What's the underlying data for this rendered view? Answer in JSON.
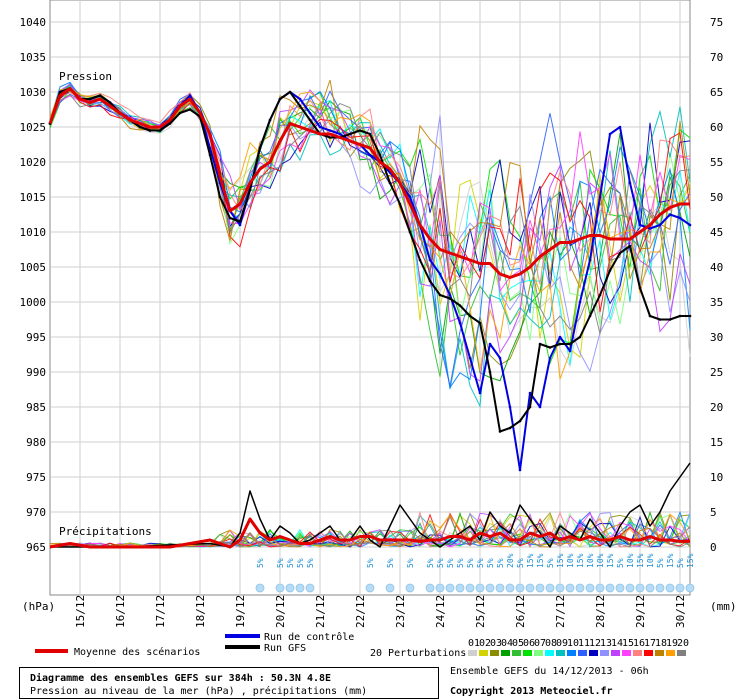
{
  "chart_data": {
    "type": "line",
    "title": "Diagramme des ensembles GEFS sur 384h : 50.3N 4.8E",
    "subtitle": "Pression au niveau de la mer (hPa) , précipitations (mm)",
    "run_info": "Ensemble GEFS du 14/12/2013 - 06h",
    "copyright": "Copyright 2013 Meteociel.fr",
    "left_axis_unit": "(hPa)",
    "right_axis_unit": "(mm)",
    "pressure_label": "Pression",
    "precip_label": "Précipitations",
    "left_ylim": [
      962,
      1040
    ],
    "left_ticks": [
      965,
      970,
      975,
      980,
      985,
      990,
      995,
      1000,
      1005,
      1010,
      1015,
      1020,
      1025,
      1030,
      1035,
      1040
    ],
    "right_ylim": [
      0,
      75
    ],
    "right_ticks": [
      0,
      5,
      10,
      15,
      20,
      25,
      30,
      35,
      40,
      45,
      50,
      55,
      60,
      65,
      70,
      75
    ],
    "x_ticks": [
      "15/12",
      "16/12",
      "17/12",
      "18/12",
      "19/12",
      "20/12",
      "21/12",
      "22/12",
      "23/12",
      "24/12",
      "25/12",
      "26/12",
      "27/12",
      "28/12",
      "29/12",
      "30/12"
    ],
    "x_tick_hours": [
      18,
      42,
      66,
      90,
      114,
      138,
      162,
      186,
      210,
      234,
      258,
      282,
      306,
      330,
      354,
      378
    ],
    "x_range_hours": [
      0,
      384
    ],
    "grid": true,
    "legend": {
      "mean": "Moyenne des scénarios",
      "control": "Run de contrôle",
      "gfs": "Run GFS",
      "perturbations": "20 Perturbations",
      "perturbation_ids": [
        "01",
        "02",
        "03",
        "04",
        "05",
        "06",
        "07",
        "08",
        "09",
        "10",
        "11",
        "12",
        "13",
        "14",
        "15",
        "16",
        "17",
        "18",
        "19",
        "20"
      ]
    },
    "perturbation_colors": [
      "#cfcfcf",
      "#d3d300",
      "#8c8c00",
      "#00a000",
      "#30c030",
      "#00e000",
      "#80ff80",
      "#00ffff",
      "#00c0c0",
      "#0080ff",
      "#3060ff",
      "#0000c0",
      "#9090ff",
      "#c040ff",
      "#ff40ff",
      "#ff8080",
      "#ff0000",
      "#c08000",
      "#ffa000",
      "#808080"
    ],
    "series_colors": {
      "mean": "#e00000",
      "control": "#0000e0",
      "gfs": "#000000"
    },
    "snow_probabilities": [
      {
        "hour": 126,
        "label": "5%"
      },
      {
        "hour": 138,
        "label": "5%"
      },
      {
        "hour": 144,
        "label": "5%"
      },
      {
        "hour": 150,
        "label": "5%"
      },
      {
        "hour": 156,
        "label": "5%"
      },
      {
        "hour": 192,
        "label": "5%"
      },
      {
        "hour": 204,
        "label": "5%"
      },
      {
        "hour": 216,
        "label": "5%"
      },
      {
        "hour": 228,
        "label": "5%"
      },
      {
        "hour": 234,
        "label": "5%"
      },
      {
        "hour": 240,
        "label": "5%"
      },
      {
        "hour": 246,
        "label": "5%"
      },
      {
        "hour": 252,
        "label": "5%"
      },
      {
        "hour": 258,
        "label": "5%"
      },
      {
        "hour": 264,
        "label": "5%"
      },
      {
        "hour": 270,
        "label": "5%"
      },
      {
        "hour": 276,
        "label": "20%"
      },
      {
        "hour": 282,
        "label": "5%"
      },
      {
        "hour": 288,
        "label": "15%"
      },
      {
        "hour": 294,
        "label": "15%"
      },
      {
        "hour": 300,
        "label": "5%"
      },
      {
        "hour": 306,
        "label": "15%"
      },
      {
        "hour": 312,
        "label": "10%"
      },
      {
        "hour": 318,
        "label": "15%"
      },
      {
        "hour": 324,
        "label": "10%"
      },
      {
        "hour": 330,
        "label": "10%"
      },
      {
        "hour": 336,
        "label": "15%"
      },
      {
        "hour": 342,
        "label": "5%"
      },
      {
        "hour": 348,
        "label": "10%"
      },
      {
        "hour": 354,
        "label": "15%"
      },
      {
        "hour": 360,
        "label": "10%"
      },
      {
        "hour": 366,
        "label": "5%"
      },
      {
        "hour": 372,
        "label": "15%"
      },
      {
        "hour": 378,
        "label": "5%"
      },
      {
        "hour": 384,
        "label": "15%"
      }
    ],
    "series": [
      {
        "name": "Moyenne des scénarios",
        "role": "mean",
        "x": [
          0,
          6,
          12,
          18,
          24,
          30,
          36,
          42,
          48,
          54,
          60,
          66,
          72,
          78,
          84,
          90,
          96,
          102,
          108,
          114,
          120,
          126,
          132,
          138,
          144,
          150,
          156,
          162,
          168,
          174,
          180,
          186,
          192,
          198,
          204,
          210,
          216,
          222,
          228,
          234,
          240,
          246,
          252,
          258,
          264,
          270,
          276,
          282,
          288,
          294,
          300,
          306,
          312,
          318,
          324,
          330,
          336,
          342,
          348,
          354,
          360,
          366,
          372,
          378,
          384
        ],
        "y": [
          1025.5,
          1029.5,
          1030.5,
          1029,
          1028.5,
          1029,
          1028,
          1027,
          1026,
          1025.5,
          1025,
          1025,
          1026,
          1028,
          1029,
          1027,
          1024,
          1018,
          1013,
          1014,
          1017,
          1019,
          1020,
          1023,
          1025.5,
          1025,
          1024.5,
          1024,
          1024,
          1023.5,
          1023,
          1022.5,
          1022,
          1020,
          1019,
          1017,
          1014,
          1011,
          1009,
          1007.5,
          1007,
          1006.5,
          1006,
          1005.5,
          1005.5,
          1004,
          1003.5,
          1004,
          1005,
          1006.5,
          1007.5,
          1008.5,
          1008.5,
          1009,
          1009.5,
          1009.5,
          1009,
          1009,
          1009,
          1010,
          1011,
          1012.5,
          1013.5,
          1014,
          1014
        ]
      },
      {
        "name": "Run de contrôle",
        "role": "control",
        "x": [
          0,
          6,
          12,
          18,
          24,
          30,
          36,
          42,
          48,
          54,
          60,
          66,
          72,
          78,
          84,
          90,
          96,
          102,
          108,
          114,
          120,
          126,
          132,
          138,
          144,
          150,
          156,
          162,
          168,
          174,
          180,
          186,
          192,
          198,
          204,
          210,
          216,
          222,
          228,
          234,
          240,
          246,
          252,
          258,
          264,
          270,
          276,
          282,
          288,
          294,
          300,
          306,
          312,
          318,
          324,
          330,
          336,
          342,
          348,
          354,
          360,
          366,
          372,
          378,
          384
        ],
        "y": [
          1025.5,
          1030,
          1030.5,
          1029,
          1029,
          1029.5,
          1028.5,
          1027,
          1026,
          1025,
          1024.5,
          1024.5,
          1026,
          1028,
          1029.5,
          1027,
          1022,
          1017,
          1013,
          1011,
          1016,
          1022,
          1026,
          1029,
          1030,
          1029,
          1027,
          1025,
          1024.5,
          1024,
          1023,
          1022.5,
          1021,
          1020,
          1018.5,
          1017,
          1015,
          1011,
          1006,
          1004,
          1001,
          997,
          992,
          987,
          994,
          992,
          985,
          976,
          987,
          985,
          992,
          995,
          993,
          1000,
          1006,
          1015,
          1024,
          1025,
          1017,
          1011,
          1010.5,
          1011,
          1012.5,
          1012,
          1011
        ]
      },
      {
        "name": "Run GFS",
        "role": "gfs",
        "x": [
          0,
          6,
          12,
          18,
          24,
          30,
          36,
          42,
          48,
          54,
          60,
          66,
          72,
          78,
          84,
          90,
          96,
          102,
          108,
          114,
          120,
          126,
          132,
          138,
          144,
          150,
          156,
          162,
          168,
          174,
          180,
          186,
          192,
          198,
          204,
          210,
          216,
          222,
          228,
          234,
          240,
          246,
          252,
          258,
          264,
          270,
          276,
          282,
          288,
          294,
          300,
          306,
          312,
          318,
          324,
          330,
          336,
          342,
          348,
          354,
          360,
          366,
          372,
          378,
          384
        ],
        "y": [
          1025.5,
          1030,
          1030.5,
          1029,
          1029,
          1029.5,
          1028.5,
          1027,
          1026,
          1025,
          1024.5,
          1024.5,
          1025.5,
          1027,
          1027.5,
          1026.5,
          1021,
          1015,
          1012,
          1011.5,
          1016,
          1022,
          1026,
          1029,
          1030,
          1028,
          1026,
          1024,
          1023.5,
          1023.5,
          1024,
          1024.5,
          1024,
          1021,
          1017,
          1014,
          1010,
          1006,
          1003,
          1001,
          1000.5,
          999.5,
          998,
          997,
          990,
          981.5,
          982,
          983,
          985,
          994,
          993.5,
          994,
          994,
          995,
          998,
          1001,
          1004.5,
          1007,
          1008,
          1002,
          998,
          997.5,
          997.5,
          998,
          998
        ]
      },
      {
        "name": "Précipitations (moyenne)",
        "role": "precip-mean",
        "x": [
          0,
          12,
          24,
          36,
          48,
          60,
          72,
          84,
          96,
          108,
          114,
          120,
          126,
          132,
          138,
          144,
          150,
          156,
          162,
          168,
          174,
          180,
          186,
          192,
          198,
          204,
          210,
          216,
          222,
          228,
          234,
          240,
          246,
          252,
          258,
          264,
          270,
          276,
          282,
          288,
          294,
          300,
          306,
          312,
          318,
          324,
          330,
          336,
          342,
          348,
          354,
          360,
          366,
          372,
          378,
          384
        ],
        "y": [
          0,
          0.5,
          0,
          0,
          0,
          0,
          0,
          0.5,
          1,
          0,
          1,
          4,
          2,
          1,
          1.5,
          1,
          0.5,
          0.5,
          1,
          1.5,
          1,
          1,
          1.5,
          1.5,
          1,
          1,
          1,
          1,
          0.8,
          1,
          1,
          1.5,
          1.5,
          1,
          2,
          1.5,
          2,
          1,
          1,
          2,
          1.5,
          2,
          1,
          1.5,
          1,
          1.5,
          1,
          1,
          1.5,
          1,
          1,
          1.5,
          1,
          1,
          0.8,
          0.8
        ]
      },
      {
        "name": "Précipitations (GFS)",
        "role": "precip-gfs",
        "x": [
          0,
          24,
          48,
          72,
          96,
          108,
          114,
          120,
          126,
          132,
          138,
          144,
          150,
          156,
          162,
          168,
          174,
          180,
          186,
          192,
          198,
          204,
          210,
          216,
          222,
          228,
          234,
          240,
          246,
          252,
          258,
          264,
          270,
          276,
          282,
          288,
          294,
          300,
          306,
          312,
          318,
          324,
          330,
          336,
          342,
          348,
          354,
          360,
          366,
          372,
          378,
          384
        ],
        "y": [
          0,
          0,
          0,
          0.3,
          0.5,
          0,
          2,
          8,
          4,
          1,
          3,
          2,
          0.5,
          1,
          2,
          3,
          1,
          1,
          3,
          1,
          0,
          3,
          6,
          4,
          2,
          1,
          0,
          1,
          2,
          3,
          1,
          5,
          3,
          2,
          6,
          4,
          2,
          0,
          3,
          2,
          1,
          4,
          2,
          0,
          3,
          5,
          6,
          3,
          5,
          8,
          10,
          12
        ]
      }
    ]
  }
}
